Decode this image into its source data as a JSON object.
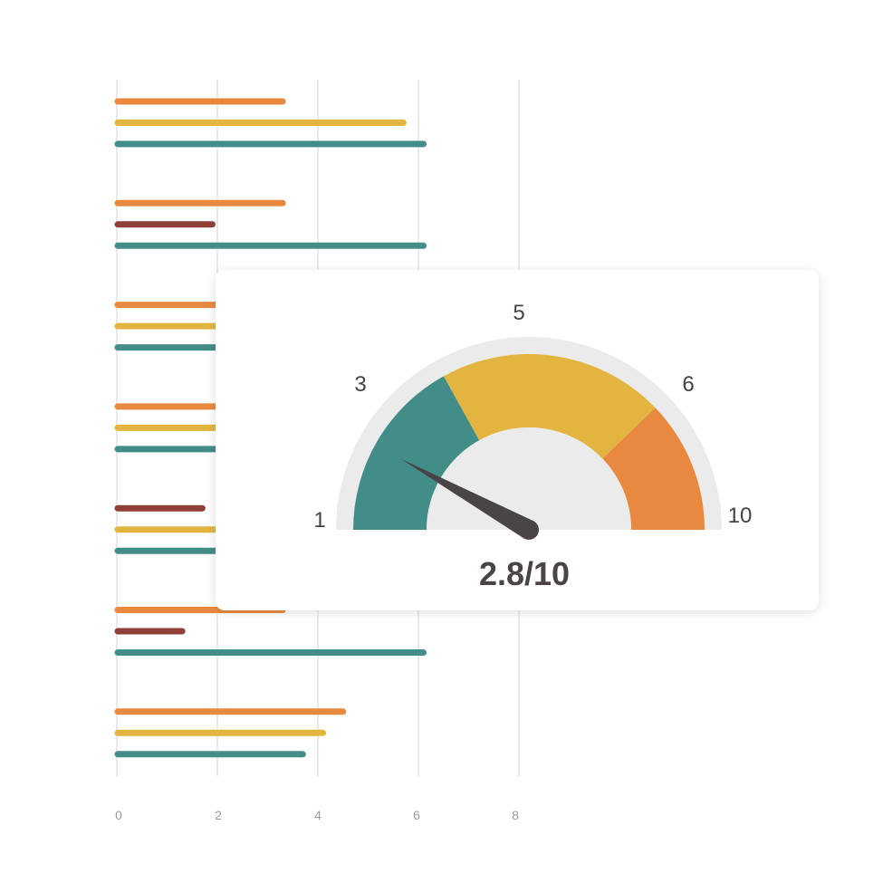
{
  "colors": {
    "orange": "#E8893F",
    "yellow": "#E3B540",
    "teal": "#438D88",
    "darkred": "#8F3F38",
    "gauge_track": "#EBEBEB",
    "needle": "#4A4446",
    "grid": "#DDDDDD"
  },
  "chart_data": [
    {
      "type": "bar",
      "orientation": "horizontal",
      "grid": true,
      "xlim": [
        0,
        8
      ],
      "x_ticks": [
        "0",
        "2",
        "4",
        "6",
        "8"
      ],
      "groups": [
        {
          "bars": [
            {
              "value": 3.3,
              "color": "orange"
            },
            {
              "value": 5.7,
              "color": "yellow"
            },
            {
              "value": 6.1,
              "color": "teal"
            }
          ]
        },
        {
          "bars": [
            {
              "value": 3.3,
              "color": "orange"
            },
            {
              "value": 1.9,
              "color": "darkred"
            },
            {
              "value": 6.1,
              "color": "teal"
            }
          ]
        },
        {
          "bars": [
            {
              "value": 2.0,
              "color": "orange"
            },
            {
              "value": 2.0,
              "color": "yellow"
            },
            {
              "value": 2.0,
              "color": "teal"
            }
          ]
        },
        {
          "bars": [
            {
              "value": 2.0,
              "color": "orange"
            },
            {
              "value": 2.0,
              "color": "yellow"
            },
            {
              "value": 2.0,
              "color": "teal"
            }
          ]
        },
        {
          "bars": [
            {
              "value": 1.7,
              "color": "darkred"
            },
            {
              "value": 2.0,
              "color": "yellow"
            },
            {
              "value": 2.0,
              "color": "teal"
            }
          ]
        },
        {
          "bars": [
            {
              "value": 3.3,
              "color": "orange"
            },
            {
              "value": 1.3,
              "color": "darkred"
            },
            {
              "value": 6.1,
              "color": "teal"
            }
          ]
        },
        {
          "bars": [
            {
              "value": 4.5,
              "color": "orange"
            },
            {
              "value": 4.1,
              "color": "yellow"
            },
            {
              "value": 3.7,
              "color": "teal"
            }
          ]
        }
      ]
    },
    {
      "type": "gauge",
      "tick_labels": [
        "1",
        "3",
        "5",
        "6",
        "10"
      ],
      "segments": [
        {
          "from": "1",
          "to": "3",
          "color": "teal"
        },
        {
          "from": "3",
          "to": "6",
          "color": "yellow"
        },
        {
          "from": "6",
          "to": "10",
          "color": "orange"
        }
      ],
      "value": 2.8,
      "score_label": "2.8/10"
    }
  ]
}
